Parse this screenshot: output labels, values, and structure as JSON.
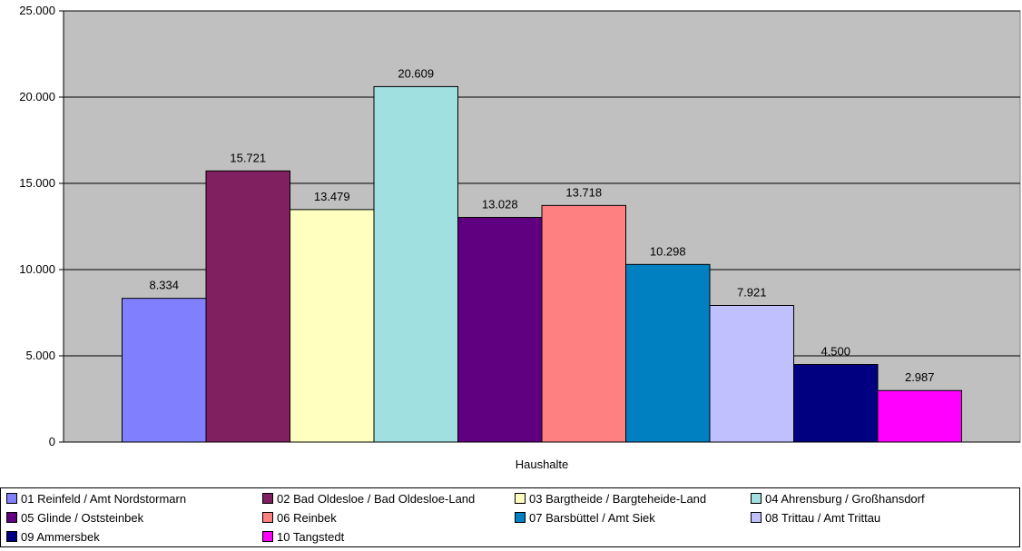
{
  "chart_data": {
    "type": "bar",
    "categories": [
      "Haushalte"
    ],
    "xlabel": "Haushalte",
    "ylabel": "",
    "ylim": [
      0,
      25000
    ],
    "yticks": [
      "0",
      "5.000",
      "10.000",
      "15.000",
      "20.000",
      "25.000"
    ],
    "ytick_values": [
      0,
      5000,
      10000,
      15000,
      20000,
      25000
    ],
    "grid": true,
    "legend_position": "bottom",
    "plot_background": "#c0c0c0",
    "series": [
      {
        "name": "01 Reinfeld / Amt Nordstormarn",
        "value": 8334,
        "label": "8.334",
        "color": "#8080ff"
      },
      {
        "name": "02 Bad Oldesloe / Bad Oldesloe-Land",
        "value": 15721,
        "label": "15.721",
        "color": "#802060"
      },
      {
        "name": "03 Bargtheide / Bargteheide-Land",
        "value": 13479,
        "label": "13.479",
        "color": "#ffffc0"
      },
      {
        "name": "04 Ahrensburg / Großhansdorf",
        "value": 20609,
        "label": "20.609",
        "color": "#a0e0e0"
      },
      {
        "name": "05 Glinde / Oststeinbek",
        "value": 13028,
        "label": "13.028",
        "color": "#600080"
      },
      {
        "name": "06 Reinbek",
        "value": 13718,
        "label": "13.718",
        "color": "#ff8080"
      },
      {
        "name": "07 Barsbüttel / Amt Siek",
        "value": 10298,
        "label": "10.298",
        "color": "#0080c0"
      },
      {
        "name": "08 Trittau / Amt Trittau",
        "value": 7921,
        "label": "7.921",
        "color": "#c0c0ff"
      },
      {
        "name": "09 Ammersbek",
        "value": 4500,
        "label": "4.500",
        "color": "#000080"
      },
      {
        "name": "10 Tangstedt",
        "value": 2987,
        "label": "2.987",
        "color": "#ff00ff"
      }
    ]
  }
}
